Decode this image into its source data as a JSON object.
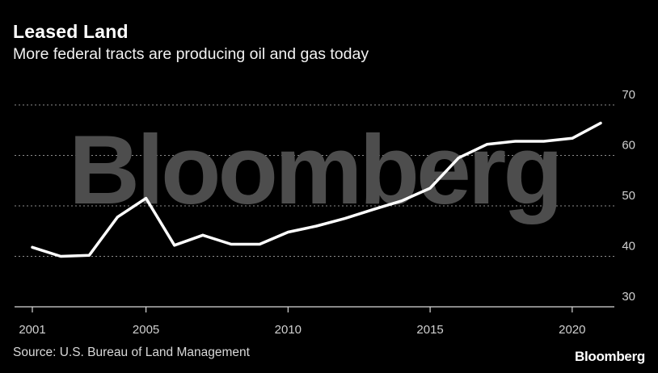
{
  "header": {
    "title": "Leased Land",
    "subtitle": "More federal tracts are producing oil and gas today"
  },
  "footer": {
    "source": "Source: U.S. Bureau of Land Management",
    "brand": "Bloomberg"
  },
  "watermark": "Bloomberg",
  "colors": {
    "background": "#000000",
    "line": "#ffffff",
    "grid": "#8c8c8c",
    "watermark": "#4d4d4d"
  },
  "chart_data": {
    "type": "line",
    "title": "Leased Land",
    "subtitle": "More federal tracts are producing oil and gas today",
    "xlabel": "",
    "ylabel": "",
    "xlim": [
      2001,
      2021
    ],
    "ylim": [
      30,
      70
    ],
    "xticks": [
      2001,
      2005,
      2010,
      2015,
      2020
    ],
    "yticks": [
      30,
      40,
      50,
      60,
      70
    ],
    "grid": "horizontal dotted",
    "legend": "none",
    "series": [
      {
        "x": [
          2001,
          2002,
          2003,
          2004,
          2005,
          2006,
          2007,
          2008,
          2009,
          2010,
          2011,
          2012,
          2013,
          2014,
          2015,
          2016,
          2017,
          2018,
          2019,
          2020,
          2021
        ],
        "values": [
          41.8,
          40.0,
          40.2,
          47.8,
          51.5,
          42.2,
          44.2,
          42.4,
          42.4,
          44.8,
          46.0,
          47.5,
          49.3,
          51.0,
          53.5,
          59.5,
          62.2,
          62.8,
          62.8,
          63.4,
          66.4
        ]
      }
    ]
  }
}
